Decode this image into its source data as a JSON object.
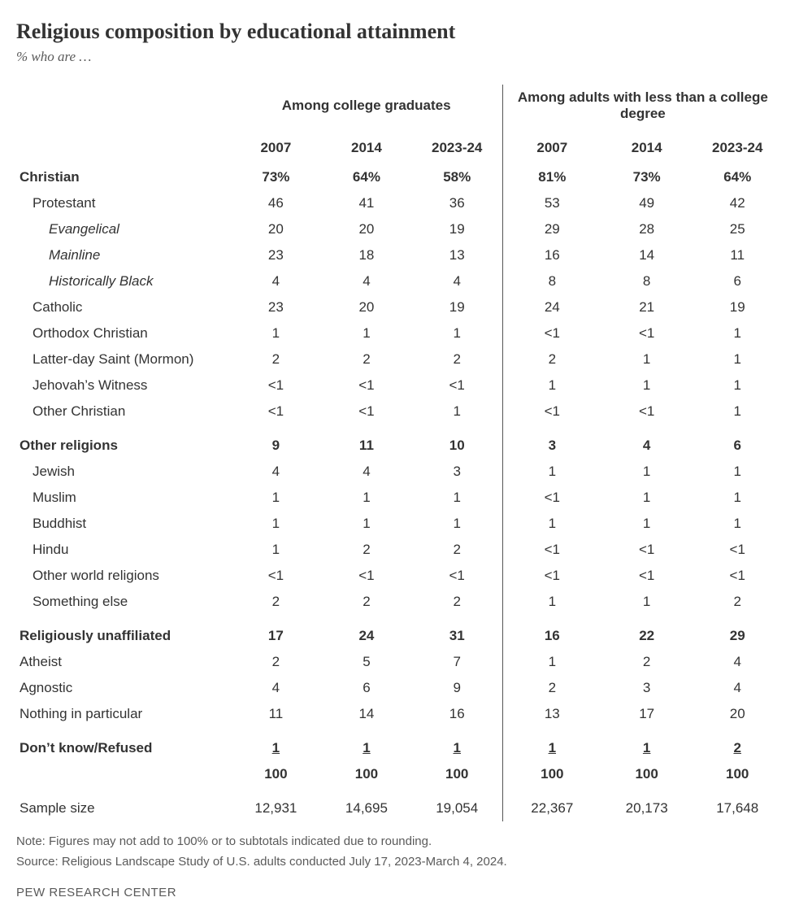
{
  "title": "Religious composition by educational attainment",
  "subtitle": "% who are …",
  "group_headers": [
    "Among college graduates",
    "Among adults with less than a college degree"
  ],
  "years": [
    "2007",
    "2014",
    "2023-24"
  ],
  "rows": [
    {
      "label": "Christian",
      "bold": true,
      "indent": 0,
      "a": [
        "73%",
        "64%",
        "58%"
      ],
      "b": [
        "81%",
        "73%",
        "64%"
      ]
    },
    {
      "label": "Protestant",
      "bold": false,
      "indent": 1,
      "a": [
        "46",
        "41",
        "36"
      ],
      "b": [
        "53",
        "49",
        "42"
      ]
    },
    {
      "label": "Evangelical",
      "bold": false,
      "indent": 2,
      "a": [
        "20",
        "20",
        "19"
      ],
      "b": [
        "29",
        "28",
        "25"
      ]
    },
    {
      "label": "Mainline",
      "bold": false,
      "indent": 2,
      "a": [
        "23",
        "18",
        "13"
      ],
      "b": [
        "16",
        "14",
        "11"
      ]
    },
    {
      "label": "Historically Black",
      "bold": false,
      "indent": 2,
      "a": [
        "4",
        "4",
        "4"
      ],
      "b": [
        "8",
        "8",
        "6"
      ]
    },
    {
      "label": "Catholic",
      "bold": false,
      "indent": 1,
      "a": [
        "23",
        "20",
        "19"
      ],
      "b": [
        "24",
        "21",
        "19"
      ]
    },
    {
      "label": "Orthodox Christian",
      "bold": false,
      "indent": 1,
      "a": [
        "1",
        "1",
        "1"
      ],
      "b": [
        "<1",
        "<1",
        "1"
      ]
    },
    {
      "label": "Latter-day Saint (Mormon)",
      "bold": false,
      "indent": 1,
      "a": [
        "2",
        "2",
        "2"
      ],
      "b": [
        "2",
        "1",
        "1"
      ]
    },
    {
      "label": "Jehovah’s Witness",
      "bold": false,
      "indent": 1,
      "a": [
        "<1",
        "<1",
        "<1"
      ],
      "b": [
        "1",
        "1",
        "1"
      ]
    },
    {
      "label": "Other Christian",
      "bold": false,
      "indent": 1,
      "a": [
        "<1",
        "<1",
        "1"
      ],
      "b": [
        "<1",
        "<1",
        "1"
      ]
    },
    {
      "spacer": true
    },
    {
      "label": "Other religions",
      "bold": true,
      "indent": 0,
      "a": [
        "9",
        "11",
        "10"
      ],
      "b": [
        "3",
        "4",
        "6"
      ]
    },
    {
      "label": "Jewish",
      "bold": false,
      "indent": 1,
      "a": [
        "4",
        "4",
        "3"
      ],
      "b": [
        "1",
        "1",
        "1"
      ]
    },
    {
      "label": "Muslim",
      "bold": false,
      "indent": 1,
      "a": [
        "1",
        "1",
        "1"
      ],
      "b": [
        "<1",
        "1",
        "1"
      ]
    },
    {
      "label": "Buddhist",
      "bold": false,
      "indent": 1,
      "a": [
        "1",
        "1",
        "1"
      ],
      "b": [
        "1",
        "1",
        "1"
      ]
    },
    {
      "label": "Hindu",
      "bold": false,
      "indent": 1,
      "a": [
        "1",
        "2",
        "2"
      ],
      "b": [
        "<1",
        "<1",
        "<1"
      ]
    },
    {
      "label": "Other world religions",
      "bold": false,
      "indent": 1,
      "a": [
        "<1",
        "<1",
        "<1"
      ],
      "b": [
        "<1",
        "<1",
        "<1"
      ]
    },
    {
      "label": "Something else",
      "bold": false,
      "indent": 1,
      "a": [
        "2",
        "2",
        "2"
      ],
      "b": [
        "1",
        "1",
        "2"
      ]
    },
    {
      "spacer": true
    },
    {
      "label": "Religiously unaffiliated",
      "bold": true,
      "indent": 0,
      "a": [
        "17",
        "24",
        "31"
      ],
      "b": [
        "16",
        "22",
        "29"
      ]
    },
    {
      "label": "Atheist",
      "bold": false,
      "indent": 0,
      "a": [
        "2",
        "5",
        "7"
      ],
      "b": [
        "1",
        "2",
        "4"
      ]
    },
    {
      "label": "Agnostic",
      "bold": false,
      "indent": 0,
      "a": [
        "4",
        "6",
        "9"
      ],
      "b": [
        "2",
        "3",
        "4"
      ]
    },
    {
      "label": "Nothing in particular",
      "bold": false,
      "indent": 0,
      "a": [
        "11",
        "14",
        "16"
      ],
      "b": [
        "13",
        "17",
        "20"
      ]
    },
    {
      "spacer": true
    },
    {
      "label": "Don’t know/Refused",
      "bold": true,
      "indent": 0,
      "underline": true,
      "a": [
        "1",
        "1",
        "1"
      ],
      "b": [
        "1",
        "1",
        "2"
      ]
    },
    {
      "label": "",
      "bold": true,
      "indent": 0,
      "a": [
        "100",
        "100",
        "100"
      ],
      "b": [
        "100",
        "100",
        "100"
      ]
    },
    {
      "spacer": true
    },
    {
      "label": "Sample size",
      "bold": false,
      "indent": 0,
      "a": [
        "12,931",
        "14,695",
        "19,054"
      ],
      "b": [
        "22,367",
        "20,173",
        "17,648"
      ]
    }
  ],
  "note": "Note: Figures may not add to 100% or to subtotals indicated due to rounding.",
  "source": "Source: Religious Landscape Study of U.S. adults conducted July 17, 2023-March 4, 2024.",
  "attribution": "PEW RESEARCH CENTER"
}
